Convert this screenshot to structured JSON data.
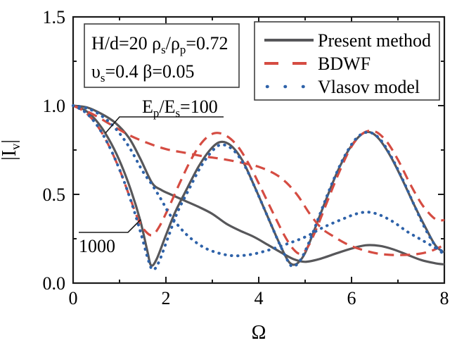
{
  "colors": {
    "present": "#57575a",
    "bdwf": "#d54c42",
    "vlasov": "#2e62a9",
    "text": "#000000",
    "background": "#ffffff"
  },
  "labels": {
    "xlabel": "Ω",
    "ylabel_parts": [
      {
        "t": "|I"
      },
      {
        "t": "v",
        "sub": true
      },
      {
        "t": "|"
      }
    ]
  },
  "param_box": {
    "line1_parts": [
      {
        "t": "H/d=20  ρ"
      },
      {
        "t": "s",
        "sub": true
      },
      {
        "t": "/ρ"
      },
      {
        "t": "p",
        "sub": true
      },
      {
        "t": "=0.72"
      }
    ],
    "line2_parts": [
      {
        "t": "υ"
      },
      {
        "t": "s",
        "sub": true
      },
      {
        "t": "=0.4   β=0.05"
      }
    ]
  },
  "legend": {
    "items": [
      {
        "label": "Present method",
        "style": "solid",
        "color_key": "present"
      },
      {
        "label": "BDWF",
        "style": "dashed",
        "color_key": "bdwf"
      },
      {
        "label": "Vlasov model",
        "style": "dotted",
        "color_key": "vlasov"
      }
    ]
  },
  "annotations": {
    "group1_parts": [
      {
        "t": "E"
      },
      {
        "t": "p",
        "sub": true
      },
      {
        "t": "/E"
      },
      {
        "t": "s",
        "sub": true
      },
      {
        "t": "=100"
      }
    ],
    "group2": "1000"
  },
  "chart_data": {
    "type": "line",
    "title": "",
    "xlabel": "Ω",
    "ylabel": "|Iv|",
    "xlim": [
      0,
      8
    ],
    "ylim": [
      0,
      1.5
    ],
    "grid": false,
    "legend_position": "top-right",
    "xticks": {
      "major": [
        0,
        2,
        4,
        6,
        8
      ],
      "minor": [
        1,
        3,
        5,
        7
      ],
      "labels": [
        "0",
        "2",
        "4",
        "6",
        "8"
      ]
    },
    "yticks": {
      "major": [
        0,
        0.5,
        1.0,
        1.5
      ],
      "minor": [
        0.25,
        0.75,
        1.25
      ],
      "labels": [
        "0.0",
        "0.5",
        "1.0",
        "1.5"
      ]
    },
    "series": [
      {
        "id": "present-100",
        "name": "Present method (Ep/Es=100)",
        "method": "Present method",
        "ep_es": "100",
        "style": "solid",
        "color_key": "present",
        "points": [
          [
            0,
            1.0
          ],
          [
            0.3,
            0.99
          ],
          [
            0.6,
            0.955
          ],
          [
            0.9,
            0.905
          ],
          [
            1.2,
            0.82
          ],
          [
            1.45,
            0.7
          ],
          [
            1.7,
            0.565
          ],
          [
            1.9,
            0.525
          ],
          [
            2.1,
            0.5
          ],
          [
            2.4,
            0.465
          ],
          [
            2.7,
            0.43
          ],
          [
            3.0,
            0.39
          ],
          [
            3.3,
            0.335
          ],
          [
            3.6,
            0.295
          ],
          [
            3.9,
            0.26
          ],
          [
            4.2,
            0.215
          ],
          [
            4.5,
            0.17
          ],
          [
            4.75,
            0.135
          ],
          [
            5.0,
            0.12
          ],
          [
            5.3,
            0.135
          ],
          [
            5.7,
            0.17
          ],
          [
            6.0,
            0.195
          ],
          [
            6.3,
            0.213
          ],
          [
            6.6,
            0.21
          ],
          [
            6.9,
            0.19
          ],
          [
            7.2,
            0.16
          ],
          [
            7.5,
            0.13
          ],
          [
            7.8,
            0.112
          ],
          [
            8,
            0.105
          ]
        ]
      },
      {
        "id": "present-1000",
        "name": "Present method (Ep/Es=1000)",
        "method": "Present method",
        "ep_es": "1000",
        "style": "solid",
        "color_key": "present",
        "points": [
          [
            0,
            1.0
          ],
          [
            0.25,
            0.975
          ],
          [
            0.5,
            0.915
          ],
          [
            0.75,
            0.82
          ],
          [
            1.0,
            0.69
          ],
          [
            1.25,
            0.52
          ],
          [
            1.45,
            0.35
          ],
          [
            1.6,
            0.18
          ],
          [
            1.68,
            0.1
          ],
          [
            1.8,
            0.135
          ],
          [
            2.0,
            0.27
          ],
          [
            2.2,
            0.4
          ],
          [
            2.45,
            0.53
          ],
          [
            2.7,
            0.655
          ],
          [
            2.95,
            0.75
          ],
          [
            3.17,
            0.795
          ],
          [
            3.4,
            0.775
          ],
          [
            3.65,
            0.69
          ],
          [
            3.9,
            0.55
          ],
          [
            4.15,
            0.4
          ],
          [
            4.4,
            0.25
          ],
          [
            4.6,
            0.14
          ],
          [
            4.72,
            0.105
          ],
          [
            4.85,
            0.115
          ],
          [
            5.0,
            0.17
          ],
          [
            5.2,
            0.3
          ],
          [
            5.45,
            0.47
          ],
          [
            5.7,
            0.63
          ],
          [
            5.95,
            0.755
          ],
          [
            6.2,
            0.835
          ],
          [
            6.4,
            0.85
          ],
          [
            6.6,
            0.81
          ],
          [
            6.85,
            0.71
          ],
          [
            7.1,
            0.58
          ],
          [
            7.35,
            0.44
          ],
          [
            7.6,
            0.31
          ],
          [
            7.8,
            0.215
          ],
          [
            7.95,
            0.18
          ],
          [
            8,
            0.175
          ]
        ]
      },
      {
        "id": "bdwf-100",
        "name": "BDWF (Ep/Es=100)",
        "method": "BDWF",
        "ep_es": "100",
        "style": "dashed",
        "color_key": "bdwf",
        "points": [
          [
            0,
            1.0
          ],
          [
            0.4,
            0.955
          ],
          [
            0.8,
            0.895
          ],
          [
            1.2,
            0.835
          ],
          [
            1.6,
            0.79
          ],
          [
            2.0,
            0.755
          ],
          [
            2.4,
            0.735
          ],
          [
            2.8,
            0.715
          ],
          [
            3.2,
            0.7
          ],
          [
            3.6,
            0.68
          ],
          [
            4.0,
            0.655
          ],
          [
            4.35,
            0.615
          ],
          [
            4.6,
            0.565
          ],
          [
            4.85,
            0.49
          ],
          [
            5.1,
            0.39
          ],
          [
            5.35,
            0.31
          ],
          [
            5.6,
            0.265
          ],
          [
            5.9,
            0.22
          ],
          [
            6.2,
            0.19
          ],
          [
            6.6,
            0.165
          ],
          [
            7.0,
            0.158
          ],
          [
            7.4,
            0.163
          ],
          [
            7.7,
            0.18
          ],
          [
            8,
            0.215
          ]
        ]
      },
      {
        "id": "bdwf-1000",
        "name": "BDWF (Ep/Es=1000)",
        "method": "BDWF",
        "ep_es": "1000",
        "style": "dashed",
        "color_key": "bdwf",
        "points": [
          [
            0,
            1.0
          ],
          [
            0.25,
            0.965
          ],
          [
            0.5,
            0.895
          ],
          [
            0.75,
            0.785
          ],
          [
            1.0,
            0.64
          ],
          [
            1.2,
            0.5
          ],
          [
            1.4,
            0.36
          ],
          [
            1.55,
            0.295
          ],
          [
            1.7,
            0.27
          ],
          [
            1.85,
            0.315
          ],
          [
            2.05,
            0.42
          ],
          [
            2.3,
            0.565
          ],
          [
            2.55,
            0.7
          ],
          [
            2.8,
            0.8
          ],
          [
            3.05,
            0.845
          ],
          [
            3.3,
            0.83
          ],
          [
            3.55,
            0.77
          ],
          [
            3.8,
            0.665
          ],
          [
            4.05,
            0.535
          ],
          [
            4.3,
            0.4
          ],
          [
            4.55,
            0.27
          ],
          [
            4.75,
            0.19
          ],
          [
            4.9,
            0.165
          ],
          [
            5.05,
            0.2
          ],
          [
            5.25,
            0.31
          ],
          [
            5.5,
            0.475
          ],
          [
            5.75,
            0.635
          ],
          [
            6.0,
            0.77
          ],
          [
            6.25,
            0.845
          ],
          [
            6.5,
            0.855
          ],
          [
            6.75,
            0.8
          ],
          [
            7.0,
            0.695
          ],
          [
            7.25,
            0.565
          ],
          [
            7.5,
            0.45
          ],
          [
            7.7,
            0.385
          ],
          [
            7.85,
            0.355
          ],
          [
            8,
            0.355
          ]
        ]
      },
      {
        "id": "vlasov-100",
        "name": "Vlasov model (Ep/Es=100)",
        "method": "Vlasov model",
        "ep_es": "100",
        "style": "dotted",
        "color_key": "vlasov",
        "points": [
          [
            0,
            1.0
          ],
          [
            0.3,
            0.985
          ],
          [
            0.6,
            0.945
          ],
          [
            0.9,
            0.875
          ],
          [
            1.2,
            0.77
          ],
          [
            1.5,
            0.63
          ],
          [
            1.7,
            0.555
          ],
          [
            1.9,
            0.47
          ],
          [
            2.1,
            0.38
          ],
          [
            2.4,
            0.285
          ],
          [
            2.7,
            0.22
          ],
          [
            3.0,
            0.18
          ],
          [
            3.4,
            0.155
          ],
          [
            3.8,
            0.16
          ],
          [
            4.2,
            0.185
          ],
          [
            4.6,
            0.22
          ],
          [
            5.0,
            0.26
          ],
          [
            5.4,
            0.315
          ],
          [
            5.8,
            0.36
          ],
          [
            6.1,
            0.39
          ],
          [
            6.35,
            0.4
          ],
          [
            6.6,
            0.385
          ],
          [
            6.9,
            0.345
          ],
          [
            7.2,
            0.29
          ],
          [
            7.5,
            0.245
          ],
          [
            7.8,
            0.2
          ],
          [
            8,
            0.175
          ]
        ]
      },
      {
        "id": "vlasov-1000",
        "name": "Vlasov model (Ep/Es=1000)",
        "method": "Vlasov model",
        "ep_es": "1000",
        "style": "dotted",
        "color_key": "vlasov",
        "points": [
          [
            0,
            1.0
          ],
          [
            0.25,
            0.965
          ],
          [
            0.5,
            0.895
          ],
          [
            0.75,
            0.785
          ],
          [
            1.0,
            0.64
          ],
          [
            1.25,
            0.46
          ],
          [
            1.45,
            0.29
          ],
          [
            1.62,
            0.13
          ],
          [
            1.72,
            0.075
          ],
          [
            1.85,
            0.12
          ],
          [
            2.05,
            0.26
          ],
          [
            2.25,
            0.4
          ],
          [
            2.5,
            0.53
          ],
          [
            2.75,
            0.655
          ],
          [
            3.0,
            0.745
          ],
          [
            3.2,
            0.78
          ],
          [
            3.45,
            0.75
          ],
          [
            3.7,
            0.66
          ],
          [
            3.95,
            0.52
          ],
          [
            4.2,
            0.37
          ],
          [
            4.45,
            0.22
          ],
          [
            4.65,
            0.115
          ],
          [
            4.75,
            0.095
          ],
          [
            4.9,
            0.13
          ],
          [
            5.1,
            0.24
          ],
          [
            5.35,
            0.41
          ],
          [
            5.6,
            0.575
          ],
          [
            5.85,
            0.715
          ],
          [
            6.1,
            0.815
          ],
          [
            6.35,
            0.85
          ],
          [
            6.6,
            0.815
          ],
          [
            6.85,
            0.715
          ],
          [
            7.1,
            0.585
          ],
          [
            7.35,
            0.44
          ],
          [
            7.6,
            0.3
          ],
          [
            7.85,
            0.195
          ],
          [
            8,
            0.165
          ]
        ]
      }
    ]
  }
}
